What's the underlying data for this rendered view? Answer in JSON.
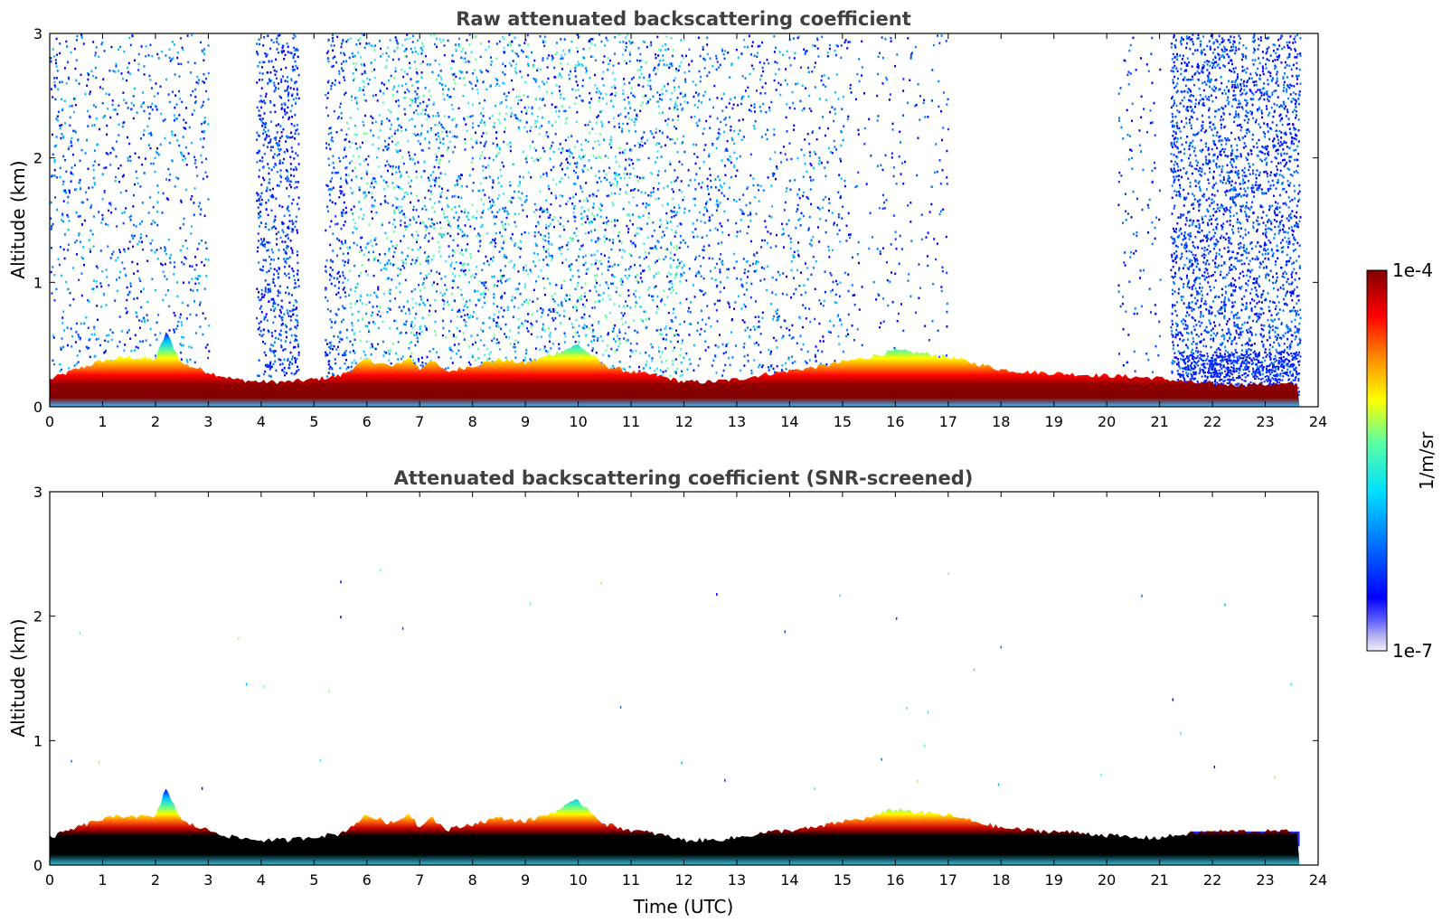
{
  "chart_data": [
    {
      "type": "heatmap",
      "title": "Raw attenuated backscattering coefficient",
      "xlabel": "",
      "ylabel": "Altitude (km)",
      "xlim": [
        0,
        24
      ],
      "ylim": [
        0,
        3
      ],
      "x_ticks": [
        "0",
        "1",
        "2",
        "3",
        "4",
        "5",
        "6",
        "7",
        "8",
        "9",
        "10",
        "11",
        "12",
        "13",
        "14",
        "15",
        "16",
        "17",
        "18",
        "19",
        "20",
        "21",
        "22",
        "23",
        "24"
      ],
      "y_ticks": [
        "0",
        "1",
        "2",
        "3"
      ],
      "data_end_time": 23.65,
      "boundary_layer_top_km": [
        [
          0,
          0.22
        ],
        [
          0.5,
          0.3
        ],
        [
          1,
          0.37
        ],
        [
          1.5,
          0.4
        ],
        [
          2,
          0.38
        ],
        [
          2.2,
          0.6
        ],
        [
          2.5,
          0.35
        ],
        [
          3,
          0.28
        ],
        [
          3.5,
          0.22
        ],
        [
          4,
          0.2
        ],
        [
          4.5,
          0.2
        ],
        [
          5,
          0.22
        ],
        [
          5.5,
          0.25
        ],
        [
          6,
          0.38
        ],
        [
          6.5,
          0.32
        ],
        [
          6.8,
          0.4
        ],
        [
          7,
          0.3
        ],
        [
          7.2,
          0.38
        ],
        [
          7.5,
          0.28
        ],
        [
          8,
          0.33
        ],
        [
          8.5,
          0.38
        ],
        [
          9,
          0.35
        ],
        [
          9.5,
          0.42
        ],
        [
          10,
          0.5
        ],
        [
          10.5,
          0.33
        ],
        [
          11,
          0.28
        ],
        [
          11.5,
          0.25
        ],
        [
          12,
          0.2
        ],
        [
          12.5,
          0.2
        ],
        [
          13,
          0.22
        ],
        [
          13.5,
          0.26
        ],
        [
          14,
          0.29
        ],
        [
          14.5,
          0.32
        ],
        [
          15,
          0.36
        ],
        [
          15.5,
          0.4
        ],
        [
          16,
          0.45
        ],
        [
          16.5,
          0.43
        ],
        [
          17,
          0.4
        ],
        [
          17.5,
          0.35
        ],
        [
          18,
          0.3
        ],
        [
          18.5,
          0.28
        ],
        [
          19,
          0.27
        ],
        [
          19.5,
          0.26
        ],
        [
          20,
          0.25
        ],
        [
          20.5,
          0.24
        ],
        [
          21,
          0.23
        ],
        [
          21.5,
          0.2
        ],
        [
          22,
          0.18
        ],
        [
          22.5,
          0.18
        ],
        [
          23,
          0.18
        ],
        [
          23.65,
          0.18
        ]
      ],
      "colormap": "jet",
      "color_scale": "log"
    },
    {
      "type": "heatmap",
      "title": "Attenuated backscattering coefficient (SNR-screened)",
      "xlabel": "Time (UTC)",
      "ylabel": "Altitude (km)",
      "xlim": [
        0,
        24
      ],
      "ylim": [
        0,
        3
      ],
      "x_ticks": [
        "0",
        "1",
        "2",
        "3",
        "4",
        "5",
        "6",
        "7",
        "8",
        "9",
        "10",
        "11",
        "12",
        "13",
        "14",
        "15",
        "16",
        "17",
        "18",
        "19",
        "20",
        "21",
        "22",
        "23",
        "24"
      ],
      "y_ticks": [
        "0",
        "1",
        "2",
        "3"
      ],
      "data_end_time": 23.65,
      "boundary_layer_top_km": [
        [
          0,
          0.22
        ],
        [
          0.5,
          0.3
        ],
        [
          1,
          0.37
        ],
        [
          1.5,
          0.4
        ],
        [
          2,
          0.38
        ],
        [
          2.2,
          0.62
        ],
        [
          2.5,
          0.35
        ],
        [
          3,
          0.28
        ],
        [
          3.5,
          0.22
        ],
        [
          4,
          0.2
        ],
        [
          4.5,
          0.2
        ],
        [
          5,
          0.23
        ],
        [
          5.5,
          0.25
        ],
        [
          6,
          0.4
        ],
        [
          6.5,
          0.33
        ],
        [
          6.8,
          0.42
        ],
        [
          7,
          0.3
        ],
        [
          7.2,
          0.4
        ],
        [
          7.5,
          0.28
        ],
        [
          8,
          0.33
        ],
        [
          8.5,
          0.38
        ],
        [
          9,
          0.35
        ],
        [
          9.5,
          0.42
        ],
        [
          10,
          0.52
        ],
        [
          10.5,
          0.33
        ],
        [
          11,
          0.28
        ],
        [
          11.5,
          0.25
        ],
        [
          12,
          0.2
        ],
        [
          12.5,
          0.2
        ],
        [
          13,
          0.22
        ],
        [
          13.5,
          0.26
        ],
        [
          14,
          0.28
        ],
        [
          14.5,
          0.3
        ],
        [
          15,
          0.35
        ],
        [
          15.5,
          0.38
        ],
        [
          16,
          0.45
        ],
        [
          16.5,
          0.42
        ],
        [
          17,
          0.4
        ],
        [
          17.5,
          0.35
        ],
        [
          18,
          0.3
        ],
        [
          18.5,
          0.28
        ],
        [
          19,
          0.27
        ],
        [
          19.5,
          0.26
        ],
        [
          20,
          0.24
        ],
        [
          20.5,
          0.22
        ],
        [
          21,
          0.22
        ],
        [
          21.5,
          0.25
        ],
        [
          22,
          0.27
        ],
        [
          22.5,
          0.27
        ],
        [
          23,
          0.27
        ],
        [
          23.65,
          0.27
        ]
      ],
      "colormap": "jet",
      "color_scale": "log"
    }
  ],
  "colorbar": {
    "label": "1/m/sr",
    "max_label": "1e-4",
    "min_label": "1e-7",
    "colors": [
      "#f0f0ff",
      "#c8c8f8",
      "#a8a8f0",
      "#8080ff",
      "#0000ff",
      "#0040ff",
      "#0080ff",
      "#00c0ff",
      "#00ffff",
      "#40ffc0",
      "#80ff80",
      "#c0ff40",
      "#ffff00",
      "#ffc000",
      "#ff8000",
      "#ff4000",
      "#ff0000",
      "#c00000",
      "#800000"
    ]
  }
}
